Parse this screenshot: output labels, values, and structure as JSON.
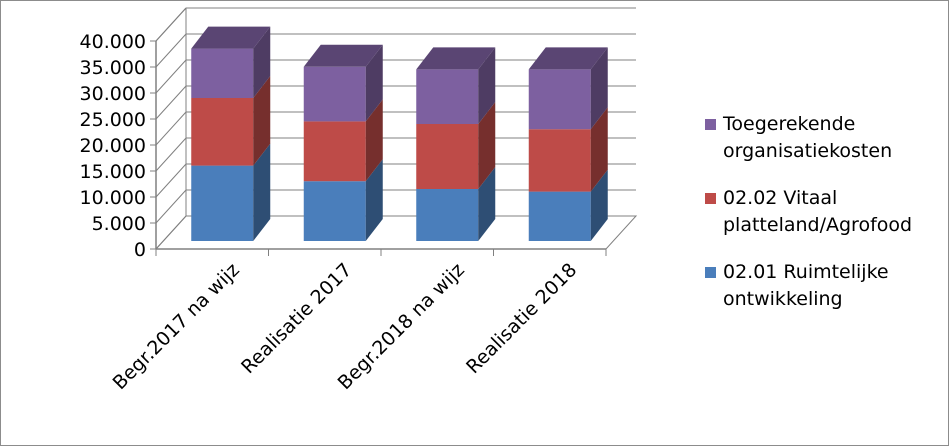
{
  "chart_data": {
    "type": "bar",
    "stacked": true,
    "three_d": true,
    "categories": [
      "Begr.2017 na wijz",
      "Realisatie 2017",
      "Begr.2018 na wijz",
      "Realisatie 2018"
    ],
    "series": [
      {
        "name": "02.01 Ruimtelijke ontwikkeling",
        "color": "#4a7ebb",
        "values": [
          14500,
          11500,
          10000,
          9500
        ]
      },
      {
        "name": "02.02 Vitaal platteland/Agrofood",
        "color": "#be4b48",
        "values": [
          13000,
          11500,
          12500,
          12000
        ]
      },
      {
        "name": "Toegerekende organisatiekosten",
        "color": "#7d60a0",
        "values": [
          9500,
          10500,
          10500,
          11500
        ]
      }
    ],
    "ylim": [
      0,
      40000
    ],
    "yticks": [
      "0",
      "5.000",
      "10.000",
      "15.000",
      "20.000",
      "25.000",
      "30.000",
      "35.000",
      "40.000"
    ],
    "grid": true,
    "legend_position": "right"
  }
}
